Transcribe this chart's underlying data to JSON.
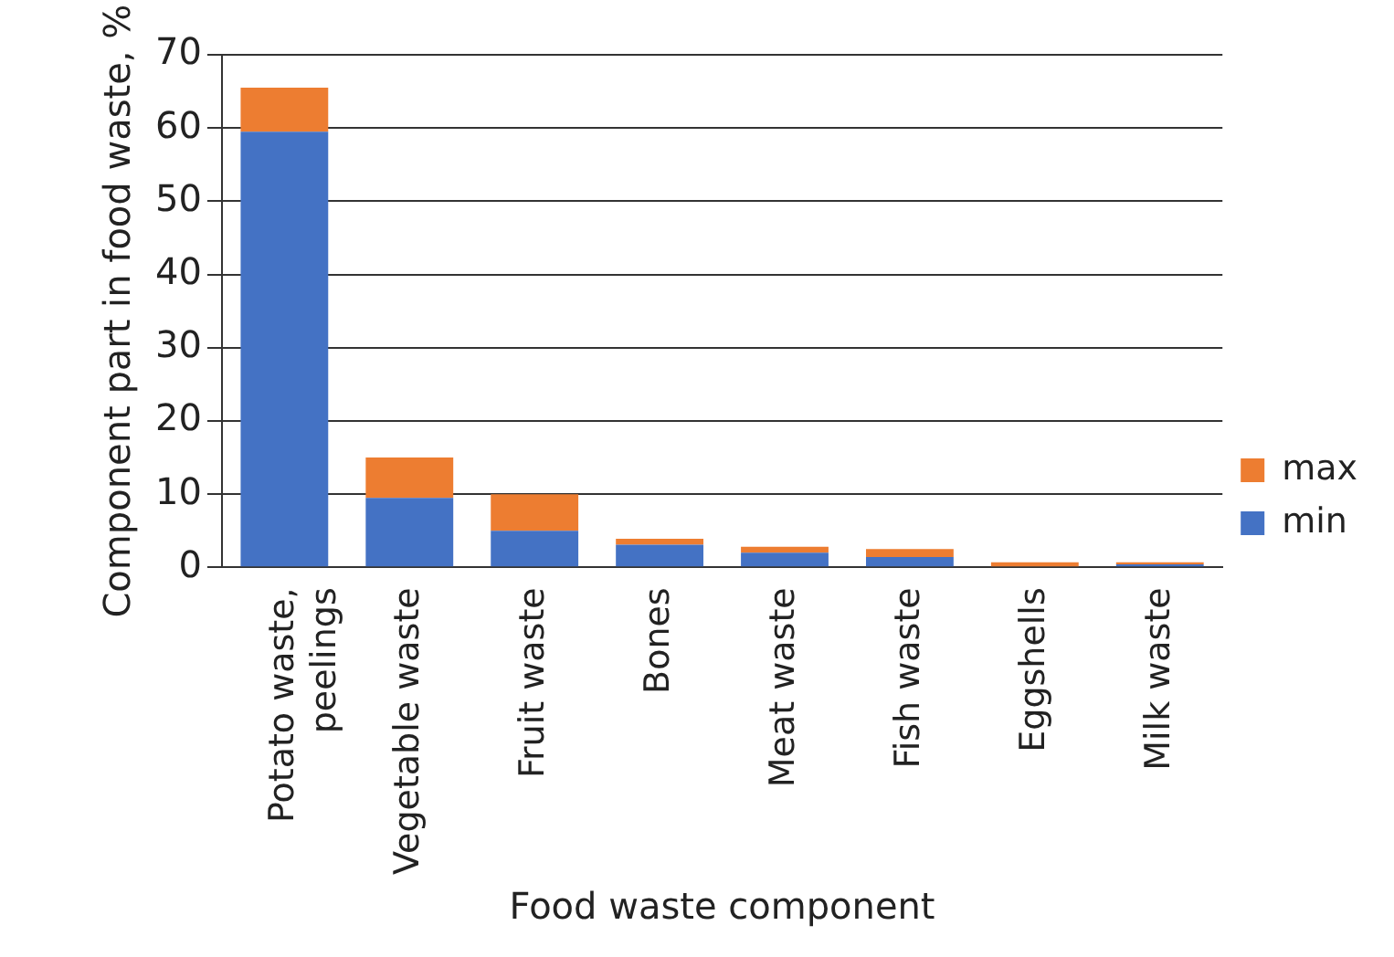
{
  "chart_data": {
    "type": "bar",
    "stacked": true,
    "xlabel": "Food waste component",
    "ylabel": "Component part in food waste, %",
    "categories": [
      "Potato waste, peelings",
      "Vegetable waste",
      "Fruit waste",
      "Bones",
      "Meat waste",
      "Fish waste",
      "Eggshells",
      "Milk waste"
    ],
    "series": [
      {
        "name": "min",
        "color": "#4472c4",
        "values": [
          59.5,
          9.5,
          5,
          3.1,
          2,
          1.4,
          null,
          0.4
        ]
      },
      {
        "name": "max",
        "color": "#ed7d31",
        "values": [
          6,
          5.5,
          5,
          0.8,
          0.8,
          1.1,
          0.7,
          0.3
        ]
      }
    ],
    "ylim": [
      0,
      70
    ],
    "yticks": [
      0,
      10,
      20,
      30,
      40,
      50,
      60,
      70
    ],
    "grid": "y",
    "legend": "right"
  }
}
